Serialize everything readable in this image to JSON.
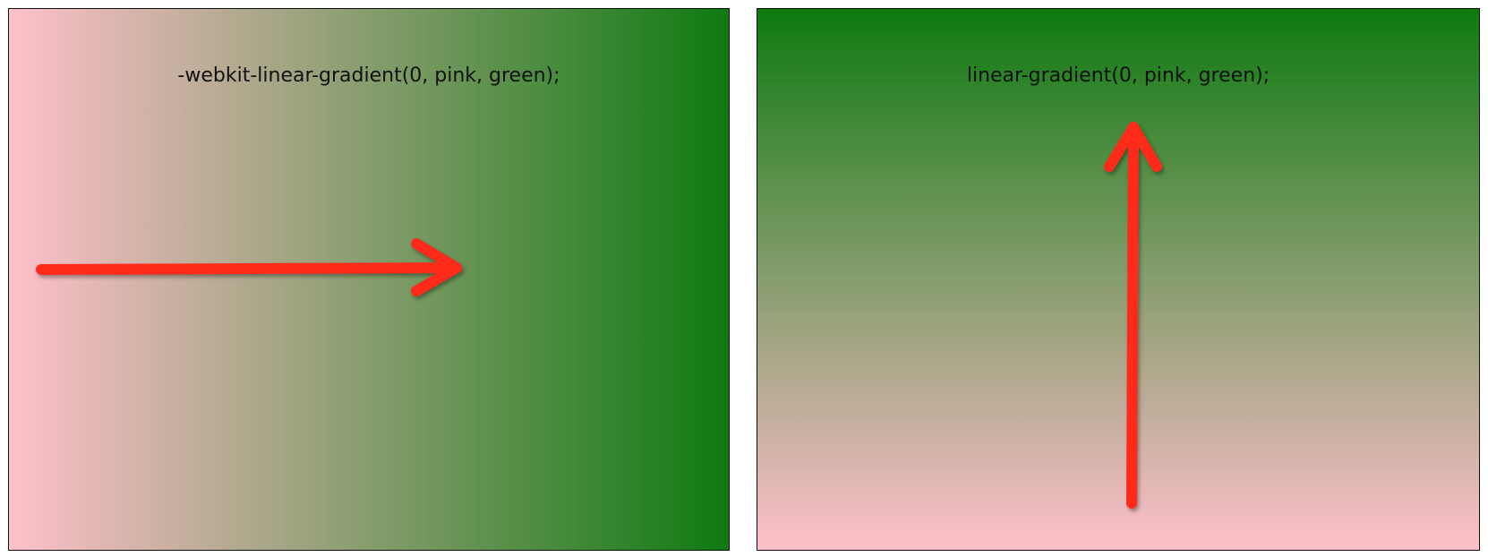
{
  "colors": {
    "start": "#ffc0cb",
    "end": "#0e7a10",
    "arrow": "#ff2a1a"
  },
  "panels": {
    "left": {
      "caption": "-webkit-linear-gradient(0, pink, green);",
      "gradient_direction": "to right",
      "arrow_icon": "arrow-right-icon"
    },
    "right": {
      "caption": "linear-gradient(0, pink, green);",
      "gradient_direction": "to top",
      "arrow_icon": "arrow-up-icon"
    }
  }
}
